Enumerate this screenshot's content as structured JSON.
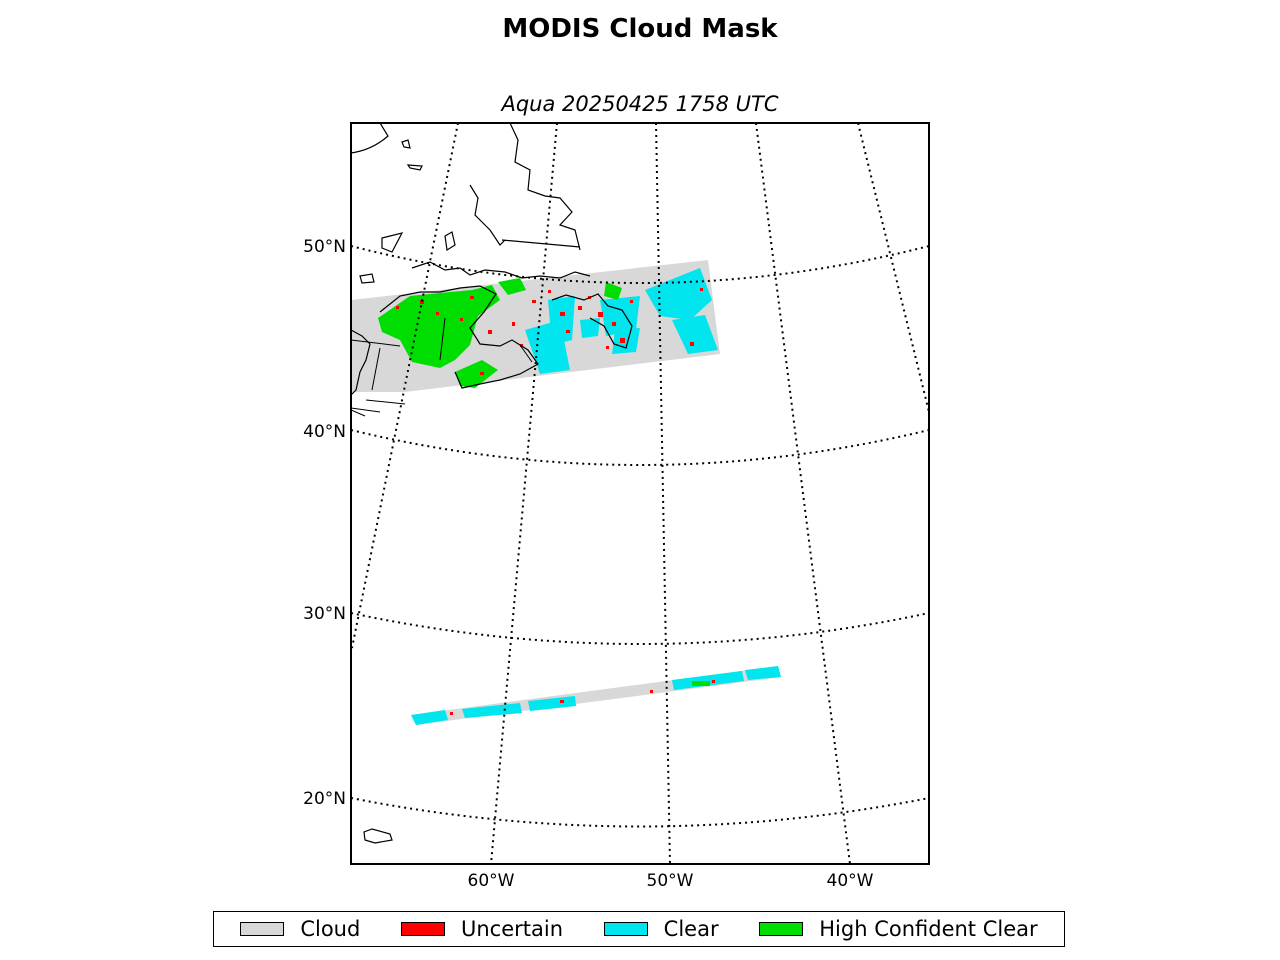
{
  "title": "MODIS Cloud Mask",
  "subtitle": "Aqua 20250425 1758 UTC",
  "colors": {
    "cloud": "#d8d8d8",
    "uncertain": "#ff0000",
    "clear": "#00e5ee",
    "high_confident_clear": "#00dd00"
  },
  "map": {
    "lat_labels": [
      "50°N",
      "40°N",
      "30°N",
      "20°N"
    ],
    "lon_labels": [
      "60°W",
      "50°W",
      "40°W"
    ]
  },
  "legend": [
    {
      "key": "cloud",
      "label": "Cloud",
      "color": "#d8d8d8"
    },
    {
      "key": "uncertain",
      "label": "Uncertain",
      "color": "#ff0000"
    },
    {
      "key": "clear",
      "label": "Clear",
      "color": "#00e5ee"
    },
    {
      "key": "high_confident_clear",
      "label": "High Confident Clear",
      "color": "#00dd00"
    }
  ]
}
